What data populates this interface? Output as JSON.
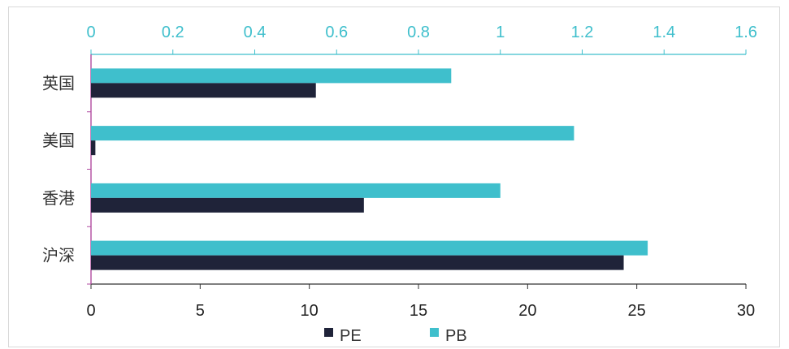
{
  "chart_data": {
    "type": "bar",
    "orientation": "horizontal",
    "categories": [
      "英国",
      "美国",
      "香港",
      "沪深"
    ],
    "series": [
      {
        "name": "PE",
        "axis": "bottom",
        "color": "#1f2339",
        "values": [
          10.3,
          0.2,
          12.5,
          24.4
        ]
      },
      {
        "name": "PB",
        "axis": "top",
        "color": "#3fbfcc",
        "values": [
          0.88,
          1.18,
          1.0,
          1.36
        ]
      }
    ],
    "x_bottom": {
      "range": [
        0,
        30
      ],
      "ticks": [
        "0",
        "5",
        "10",
        "15",
        "20",
        "25",
        "30"
      ]
    },
    "x_top": {
      "range": [
        0,
        1.6
      ],
      "ticks": [
        "0",
        "0.2",
        "0.4",
        "0.6",
        "0.8",
        "1",
        "1.2",
        "1.4",
        "1.6"
      ],
      "color": "#3fbfcc"
    },
    "legend": {
      "position": "bottom",
      "items": [
        "PE",
        "PB"
      ]
    },
    "grid": false
  }
}
